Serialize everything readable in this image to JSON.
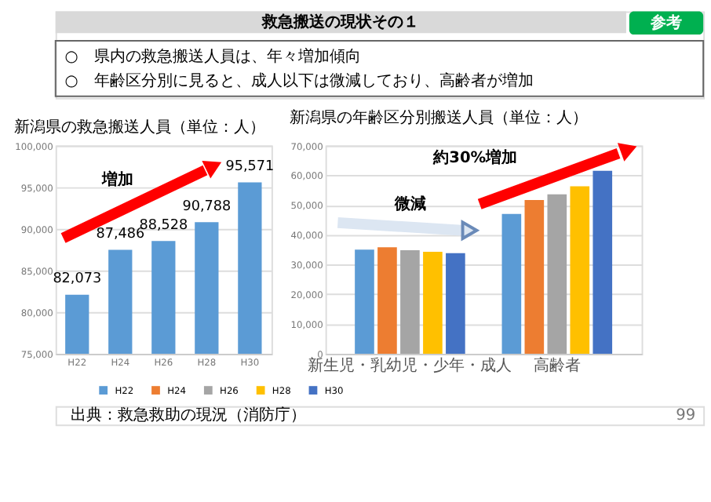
{
  "chart_data": [
    {
      "type": "bar",
      "title": "新潟県の救急搬送人員（単位：人）",
      "categories": [
        "H22",
        "H24",
        "H26",
        "H28",
        "H30"
      ],
      "values": [
        82073,
        87486,
        88528,
        90788,
        95571
      ],
      "color": "#5b9bd5",
      "ylim": [
        75000,
        100000
      ],
      "yticks": [
        {
          "value": 75000,
          "label": "75,000"
        },
        {
          "value": 80000,
          "label": "80,000"
        },
        {
          "value": 85000,
          "label": "85,000"
        },
        {
          "value": 90000,
          "label": "90,000"
        },
        {
          "value": 95000,
          "label": "95,000"
        },
        {
          "value": 100000,
          "label": "100,000"
        }
      ],
      "value_labels": [
        "82,073",
        "87,486",
        "88,528",
        "90,788",
        "95,571"
      ],
      "grid": "y",
      "annotations": [
        "救急搬送の現状その１",
        "参考",
        "○　県内の救急搬送人員は、年々増加傾向",
        "○　年齢区分別に見ると、成人以下は微減しており、高齢者が増加",
        "出典：救急救助の現況（消防庁）",
        "99",
        "増加"
      ]
    },
    {
      "type": "bar",
      "title": "新潟県の年齢区分別搬送人員（単位：人）",
      "categories": [
        "新生児・乳幼児・少年・成人",
        "高齢者"
      ],
      "series": [
        {
          "name": "H22",
          "color": "#5b9bd5",
          "values": [
            35000,
            47000
          ]
        },
        {
          "name": "H24",
          "color": "#ed7d31",
          "values": [
            35800,
            51700
          ]
        },
        {
          "name": "H26",
          "color": "#a5a5a5",
          "values": [
            34800,
            53600
          ]
        },
        {
          "name": "H28",
          "color": "#ffc000",
          "values": [
            34300,
            56300
          ]
        },
        {
          "name": "H30",
          "color": "#4472c4",
          "values": [
            33800,
            61500
          ]
        }
      ],
      "ylim": [
        0,
        70000
      ],
      "yticks": [
        0,
        {
          "value": 10000,
          "label": "10,000"
        },
        {
          "value": 20000,
          "label": "20,000"
        },
        {
          "value": 30000,
          "label": "30,000"
        },
        {
          "value": 40000,
          "label": "40,000"
        },
        {
          "value": 50000,
          "label": "50,000"
        },
        {
          "value": 60000,
          "label": "60,000"
        },
        {
          "value": 70000,
          "label": "70,000"
        }
      ],
      "grid": "y",
      "legend": "bottom",
      "annotations": [
        "微減",
        "約30%増加"
      ]
    }
  ]
}
